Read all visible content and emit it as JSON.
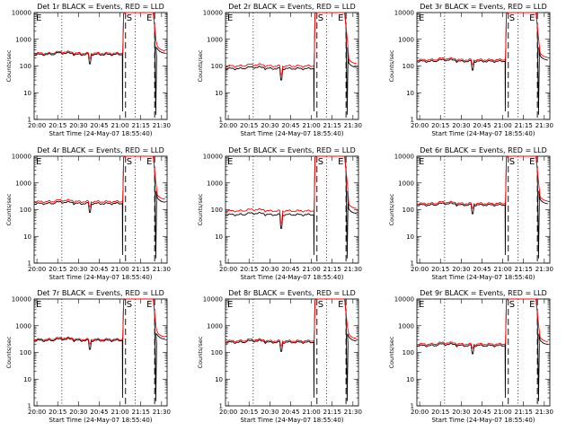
{
  "colors": {
    "events": "#000000",
    "lld": "#ff0000"
  },
  "shared": {
    "x_ticks": [
      "20:00",
      "20:15",
      "20:30",
      "20:45",
      "21:00",
      "21:15",
      "21:30"
    ],
    "y_ticks": [
      "1",
      "10",
      "100",
      "1000",
      "10000"
    ],
    "xlabel": "Start Time (24-May-07 18:55:40)",
    "ylabel": "Counts/sec",
    "markers": {
      "start": "S",
      "end": "E",
      "left": "E"
    }
  },
  "chart_data": [
    {
      "type": "line",
      "title": "Det 1r BLACK = Events, RED = LLD",
      "x_unit": "minutes after 20:00",
      "xlim": [
        -2,
        94
      ],
      "ylim": [
        1,
        10000
      ],
      "y_scale": "log",
      "events_level": 270,
      "lld_level": 300,
      "dip_at": 38,
      "dip_value": 120,
      "dropout_at": [
        62,
        87
      ],
      "dotted_lines": [
        18,
        71
      ],
      "dashed_lines": [
        64,
        85
      ],
      "series": [
        {
          "name": "BLACK = Events"
        },
        {
          "name": "RED = LLD"
        }
      ]
    },
    {
      "type": "line",
      "title": "Det 2r BLACK = Events, RED = LLD",
      "x_unit": "minutes after 20:00",
      "xlim": [
        -2,
        94
      ],
      "ylim": [
        1,
        10000
      ],
      "y_scale": "log",
      "events_level": 80,
      "lld_level": 100,
      "dip_at": 38,
      "dip_value": 30,
      "dropout_at": [
        62,
        87
      ],
      "dotted_lines": [
        18,
        71
      ],
      "dashed_lines": [
        64,
        85
      ],
      "series": [
        {
          "name": "BLACK = Events"
        },
        {
          "name": "RED = LLD"
        }
      ]
    },
    {
      "type": "line",
      "title": "Det 3r BLACK = Events, RED = LLD",
      "x_unit": "minutes after 20:00",
      "xlim": [
        -2,
        94
      ],
      "ylim": [
        1,
        10000
      ],
      "y_scale": "log",
      "events_level": 150,
      "lld_level": 170,
      "dip_at": 38,
      "dip_value": 70,
      "dropout_at": [
        62,
        87
      ],
      "dotted_lines": [
        18,
        71
      ],
      "dashed_lines": [
        64,
        85
      ],
      "series": [
        {
          "name": "BLACK = Events"
        },
        {
          "name": "RED = LLD"
        }
      ]
    },
    {
      "type": "line",
      "title": "Det 4r BLACK = Events, RED = LLD",
      "x_unit": "minutes after 20:00",
      "xlim": [
        -2,
        94
      ],
      "ylim": [
        1,
        10000
      ],
      "y_scale": "log",
      "events_level": 170,
      "lld_level": 200,
      "dip_at": 38,
      "dip_value": 80,
      "dropout_at": [
        62,
        87
      ],
      "dotted_lines": [
        18,
        71
      ],
      "dashed_lines": [
        64,
        85
      ],
      "series": [
        {
          "name": "BLACK = Events"
        },
        {
          "name": "RED = LLD"
        }
      ]
    },
    {
      "type": "line",
      "title": "Det 5r BLACK = Events, RED = LLD",
      "x_unit": "minutes after 20:00",
      "xlim": [
        -2,
        94
      ],
      "ylim": [
        1,
        10000
      ],
      "y_scale": "log",
      "events_level": 65,
      "lld_level": 90,
      "dip_at": 38,
      "dip_value": 20,
      "dropout_at": [
        62,
        87
      ],
      "dotted_lines": [
        18,
        71
      ],
      "dashed_lines": [
        64,
        85
      ],
      "series": [
        {
          "name": "BLACK = Events"
        },
        {
          "name": "RED = LLD"
        }
      ]
    },
    {
      "type": "line",
      "title": "Det 6r BLACK = Events, RED = LLD",
      "x_unit": "minutes after 20:00",
      "xlim": [
        -2,
        94
      ],
      "ylim": [
        1,
        10000
      ],
      "y_scale": "log",
      "events_level": 150,
      "lld_level": 170,
      "dip_at": 38,
      "dip_value": 70,
      "dropout_at": [
        62,
        87
      ],
      "dotted_lines": [
        18,
        71
      ],
      "dashed_lines": [
        64,
        85
      ],
      "series": [
        {
          "name": "BLACK = Events"
        },
        {
          "name": "RED = LLD"
        }
      ]
    },
    {
      "type": "line",
      "title": "Det 7r BLACK = Events, RED = LLD",
      "x_unit": "minutes after 20:00",
      "xlim": [
        -2,
        94
      ],
      "ylim": [
        1,
        10000
      ],
      "y_scale": "log",
      "events_level": 280,
      "lld_level": 310,
      "dip_at": 38,
      "dip_value": 130,
      "dropout_at": [
        62,
        87
      ],
      "dotted_lines": [
        18,
        71
      ],
      "dashed_lines": [
        64,
        85
      ],
      "series": [
        {
          "name": "BLACK = Events"
        },
        {
          "name": "RED = LLD"
        }
      ]
    },
    {
      "type": "line",
      "title": "Det 8r BLACK = Events, RED = LLD",
      "x_unit": "minutes after 20:00",
      "xlim": [
        -2,
        94
      ],
      "ylim": [
        1,
        10000
      ],
      "y_scale": "log",
      "events_level": 240,
      "lld_level": 270,
      "dip_at": 38,
      "dip_value": 110,
      "dropout_at": [
        62,
        87
      ],
      "dotted_lines": [
        18,
        71
      ],
      "dashed_lines": [
        64,
        85
      ],
      "series": [
        {
          "name": "BLACK = Events"
        },
        {
          "name": "RED = LLD"
        }
      ]
    },
    {
      "type": "line",
      "title": "Det 9r BLACK = Events, RED = LLD",
      "x_unit": "minutes after 20:00",
      "xlim": [
        -2,
        94
      ],
      "ylim": [
        1,
        10000
      ],
      "y_scale": "log",
      "events_level": 180,
      "lld_level": 205,
      "dip_at": 38,
      "dip_value": 90,
      "dropout_at": [
        62,
        87
      ],
      "dotted_lines": [
        18,
        71
      ],
      "dashed_lines": [
        64,
        85
      ],
      "series": [
        {
          "name": "BLACK = Events"
        },
        {
          "name": "RED = LLD"
        }
      ]
    }
  ]
}
